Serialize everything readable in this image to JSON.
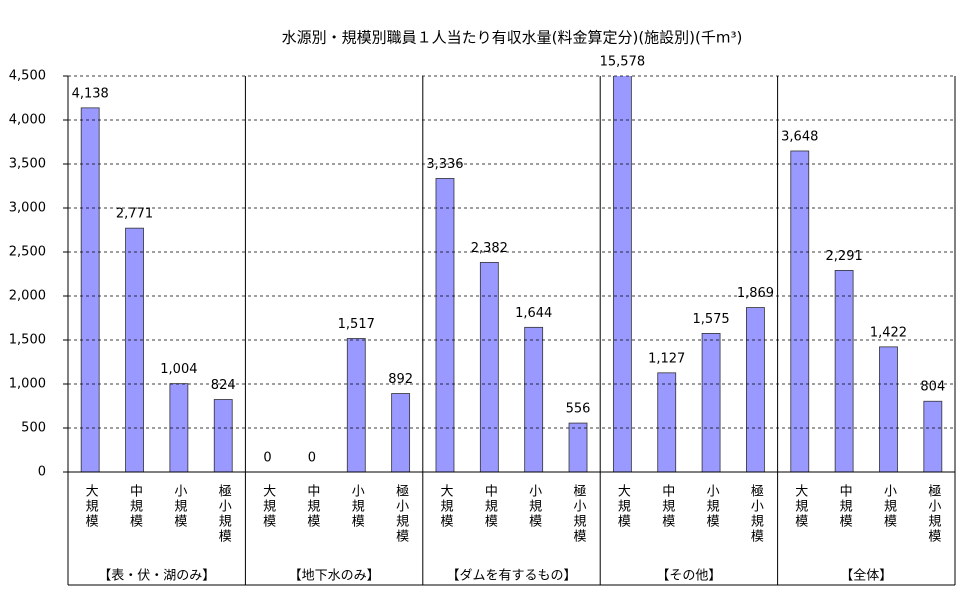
{
  "chart_data": {
    "type": "bar",
    "title": "水源別・規模別職員１人当たり有収水量(料金算定分)(施設別)(千m³)",
    "categories": [
      "大規模",
      "中規模",
      "小規模",
      "極小規模",
      "大規模",
      "中規模",
      "小規模",
      "極小規模",
      "大規模",
      "中規模",
      "小規模",
      "極小規模",
      "大規模",
      "中規模",
      "小規模",
      "極小規模",
      "大規模",
      "中規模",
      "小規模",
      "極小規模"
    ],
    "groups": [
      "【表・伏・湖のみ】",
      "【地下水のみ】",
      "【ダムを有するもの】",
      "【その他】",
      "【全体】"
    ],
    "values": [
      4138,
      2771,
      1004,
      824,
      0,
      0,
      1517,
      892,
      3336,
      2382,
      1644,
      556,
      15578,
      1127,
      1575,
      1869,
      3648,
      2291,
      1422,
      804
    ],
    "value_labels": [
      "4,138",
      "2,771",
      "1,004",
      "824",
      "0",
      "0",
      "1,517",
      "892",
      "3,336",
      "2,382",
      "1,644",
      "556",
      "15,578",
      "1,127",
      "1,575",
      "1,869",
      "3,648",
      "2,291",
      "1,422",
      "804"
    ],
    "color": "#9999ff",
    "ylim": [
      0,
      4500
    ],
    "yticks": [
      0,
      500,
      {
        "value": 1000,
        "label": "1,000"
      },
      {
        "value": 1500,
        "label": "1,500"
      },
      {
        "value": 2000,
        "label": "2,000"
      },
      {
        "value": 2500,
        "label": "2,500"
      },
      {
        "value": 3000,
        "label": "3,000"
      },
      {
        "value": 3500,
        "label": "3,500"
      },
      {
        "value": 4000,
        "label": "4,000"
      },
      {
        "value": 4500,
        "label": "4,500"
      }
    ],
    "grid": true
  }
}
